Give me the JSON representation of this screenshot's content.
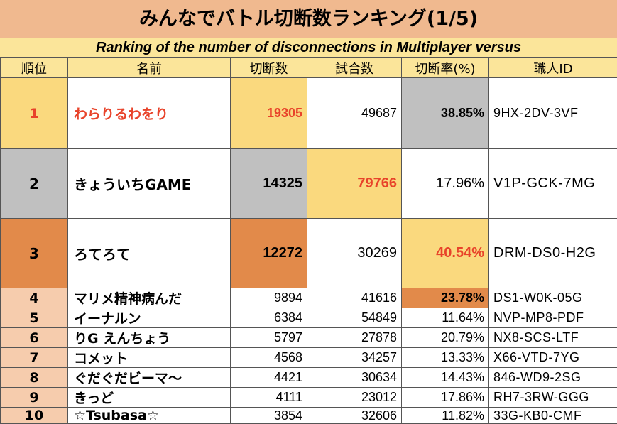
{
  "title": "みんなでバトル切断数ランキング(1/5)",
  "subtitle": "Ranking of the number of disconnections in Multiplayer versus",
  "columns": [
    "順位",
    "名前",
    "切断数",
    "試合数",
    "切断率(%)",
    "職人ID"
  ],
  "rows": [
    {
      "rank": "1",
      "name": "わらりるわをり",
      "disconnects": "19305",
      "matches": "49687",
      "rate": "38.85%",
      "maker_id": "9HX-2DV-3VF"
    },
    {
      "rank": "2",
      "name": "きょういちGAME",
      "disconnects": "14325",
      "matches": "79766",
      "rate": "17.96%",
      "maker_id": "V1P-GCK-7MG"
    },
    {
      "rank": "3",
      "name": "ろてろて",
      "disconnects": "12272",
      "matches": "30269",
      "rate": "40.54%",
      "maker_id": "DRM-DS0-H2G"
    },
    {
      "rank": "4",
      "name": "マリメ精神病んだ",
      "disconnects": "9894",
      "matches": "41616",
      "rate": "23.78%",
      "maker_id": "DS1-W0K-05G"
    },
    {
      "rank": "5",
      "name": "イーナルン",
      "disconnects": "6384",
      "matches": "54849",
      "rate": "11.64%",
      "maker_id": "NVP-MP8-PDF"
    },
    {
      "rank": "6",
      "name": "りG えんちょう",
      "disconnects": "5797",
      "matches": "27878",
      "rate": "20.79%",
      "maker_id": "NX8-SCS-LTF"
    },
    {
      "rank": "7",
      "name": "コメット",
      "disconnects": "4568",
      "matches": "34257",
      "rate": "13.33%",
      "maker_id": "X66-VTD-7YG"
    },
    {
      "rank": "8",
      "name": "ぐだぐだビーマ～",
      "disconnects": "4421",
      "matches": "30634",
      "rate": "14.43%",
      "maker_id": "846-WD9-2SG"
    },
    {
      "rank": "9",
      "name": "きっど",
      "disconnects": "4111",
      "matches": "23012",
      "rate": "17.86%",
      "maker_id": "RH7-3RW-GGG"
    },
    {
      "rank": "10",
      "name": "☆Tsubasa☆",
      "disconnects": "3854",
      "matches": "32606",
      "rate": "11.82%",
      "maker_id": "33G-KB0-CMF"
    }
  ],
  "colors": {
    "title_bg": "#f0b98f",
    "subtitle_bg": "#fbe59a",
    "gold": "#fad97e",
    "silver": "#c0c0c0",
    "bronze": "#e28a4a",
    "peach": "#f6ccad",
    "highlight_text": "#e8432a"
  }
}
